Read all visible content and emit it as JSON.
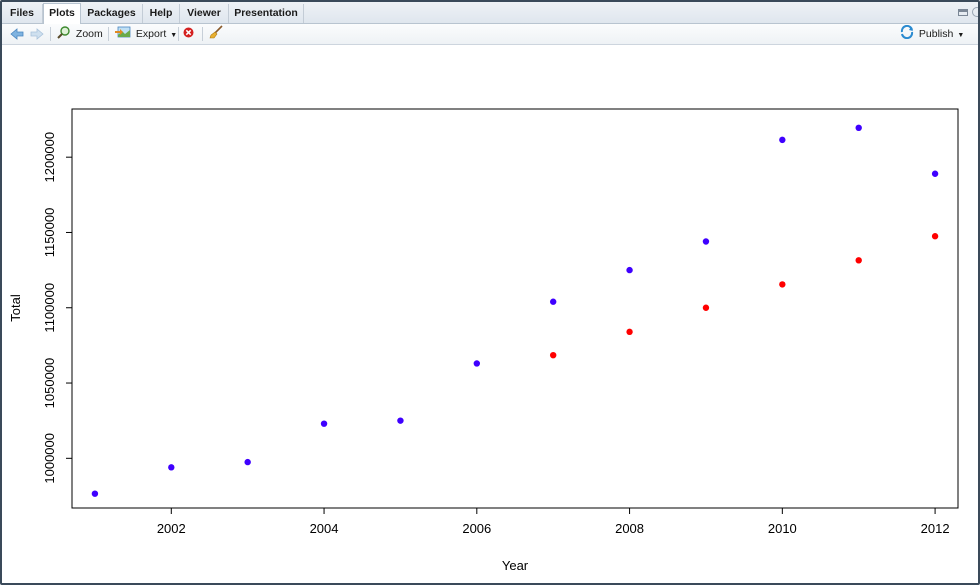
{
  "tabs": [
    {
      "label": "Files",
      "active": false
    },
    {
      "label": "Plots",
      "active": true
    },
    {
      "label": "Packages",
      "active": false
    },
    {
      "label": "Help",
      "active": false
    },
    {
      "label": "Viewer",
      "active": false
    },
    {
      "label": "Presentation",
      "active": false
    }
  ],
  "toolbar": {
    "zoom_label": "Zoom",
    "export_label": "Export",
    "publish_label": "Publish"
  },
  "icons": {
    "back": "arrow-left-icon",
    "forward": "arrow-right-icon",
    "zoom": "magnifier-icon",
    "export": "export-image-icon",
    "remove": "remove-plot-icon",
    "clear": "broom-icon",
    "publish": "publish-icon"
  },
  "colors": {
    "series_blue": "#3f00ff",
    "series_red": "#ff0000"
  },
  "chart_data": {
    "type": "scatter",
    "title": "",
    "xlabel": "Year",
    "ylabel": "Total",
    "xlim": [
      2000.7,
      2012.3
    ],
    "ylim": [
      967000,
      1232000
    ],
    "xticks": [
      2002,
      2004,
      2006,
      2008,
      2010,
      2012
    ],
    "yticks": [
      1000000,
      1050000,
      1100000,
      1150000,
      1200000
    ],
    "xtick_labels": [
      "2002",
      "2004",
      "2006",
      "2008",
      "2010",
      "2012"
    ],
    "ytick_labels": [
      "1000000",
      "1050000",
      "1100000",
      "1150000",
      "1200000"
    ],
    "grid": false,
    "series": [
      {
        "color": "#3f00ff",
        "x": [
          2001,
          2002,
          2003,
          2004,
          2005,
          2006,
          2007,
          2008,
          2009,
          2010,
          2011,
          2012
        ],
        "y": [
          976500,
          994000,
          997500,
          1023000,
          1025000,
          1063000,
          1104000,
          1125000,
          1144000,
          1211500,
          1219500,
          1189000
        ]
      },
      {
        "color": "#ff0000",
        "x": [
          2007,
          2008,
          2009,
          2010,
          2011,
          2012
        ],
        "y": [
          1068500,
          1084000,
          1100000,
          1115500,
          1131500,
          1147500
        ]
      }
    ]
  }
}
